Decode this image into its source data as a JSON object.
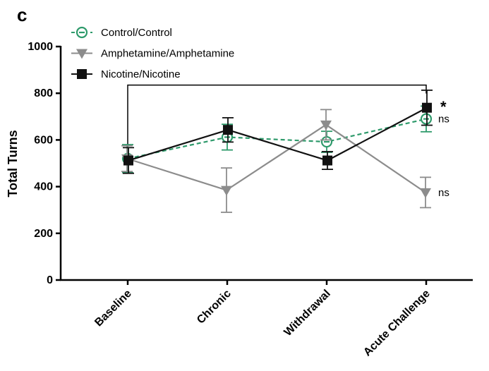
{
  "panel_letter": "c",
  "chart_data": {
    "type": "line",
    "categories": [
      "Baseline",
      "Chronic",
      "Withdrawal",
      "Acute Challenge"
    ],
    "ylabel": "Total Turns",
    "xlabel": "",
    "ylim": [
      0,
      1000
    ],
    "yticks": [
      0,
      200,
      400,
      600,
      800,
      1000
    ],
    "grid": false,
    "legend_position": "top-left",
    "series": [
      {
        "name": "Control/Control",
        "color": "#2e9a6b",
        "marker": "circle-minus-open",
        "line_style": "dashed",
        "values": [
          520,
          612,
          592,
          690
        ],
        "error": [
          60,
          55,
          45,
          55
        ]
      },
      {
        "name": "Amphetamine/Amphetamine",
        "color": "#8c8c8c",
        "marker": "triangle-down",
        "line_style": "solid",
        "values": [
          520,
          385,
          665,
          375
        ],
        "error": [
          55,
          95,
          65,
          65
        ]
      },
      {
        "name": "Nicotine/Nicotine",
        "color": "#111111",
        "marker": "square",
        "line_style": "solid",
        "values": [
          512,
          643,
          512,
          738
        ],
        "error": [
          55,
          52,
          38,
          75
        ]
      }
    ],
    "comparison_bracket": {
      "from": "Baseline",
      "to": "Acute Challenge",
      "value": 835
    },
    "annotations": [
      {
        "text": "*",
        "series": "Nicotine/Nicotine",
        "category": "Acute Challenge",
        "value": 750
      },
      {
        "text": "ns",
        "series": "Control/Control",
        "category": "Acute Challenge",
        "value": 690
      },
      {
        "text": "ns",
        "series": "Amphetamine/Amphetamine",
        "category": "Acute Challenge",
        "value": 375
      }
    ]
  }
}
